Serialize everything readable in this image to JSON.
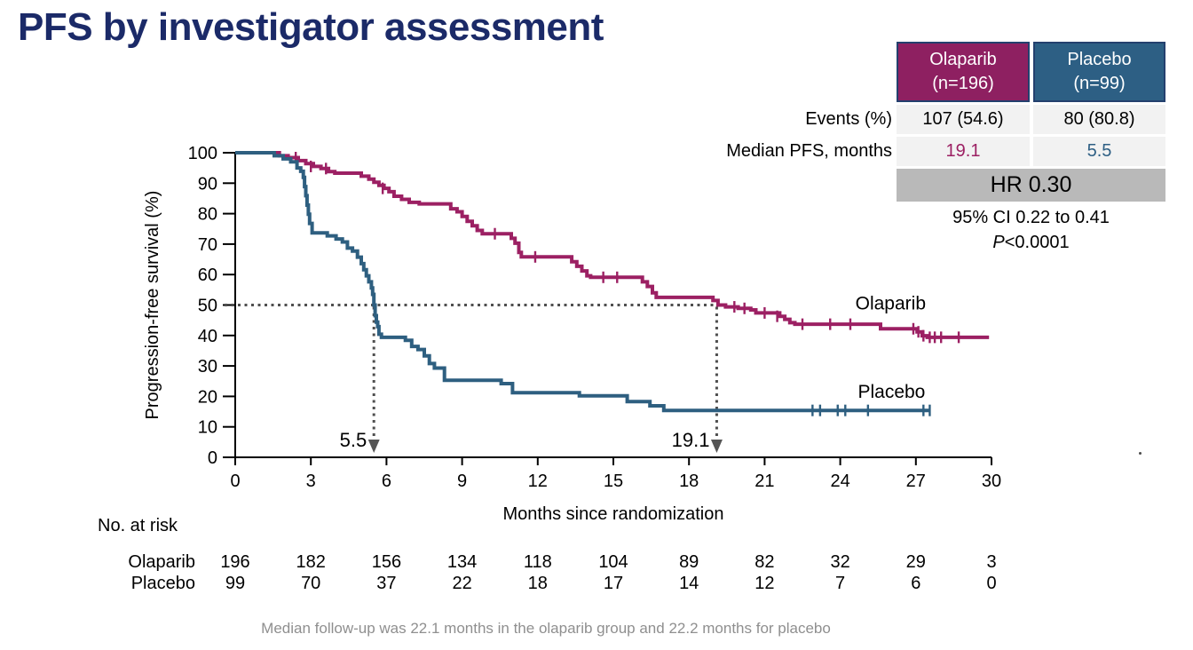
{
  "title": "PFS by investigator assessment",
  "colors": {
    "title_navy": "#1b2a68",
    "olaparib": "#9c2063",
    "placebo": "#2e5f80",
    "olaparib_header_bg": "#8e2061",
    "placebo_header_bg": "#2d5f84",
    "hr_band_bg": "#b9b9b9",
    "row_bg": "#f2f2f2",
    "dotted_gray": "#4f4f4f",
    "footnote_gray": "#8f8f8f"
  },
  "stats_table": {
    "columns": [
      {
        "name": "Olaparib",
        "n": "(n=196)",
        "bg": "#8e2061"
      },
      {
        "name": "Placebo",
        "n": "(n=99)",
        "bg": "#2d5f84"
      }
    ],
    "rows": [
      {
        "label": "Events (%)",
        "values": [
          "107 (54.6)",
          "80 (80.8)"
        ],
        "value_colors": [
          "#000000",
          "#000000"
        ]
      },
      {
        "label": "Median PFS, months",
        "values": [
          "19.1",
          "5.5"
        ],
        "value_colors": [
          "#9c2063",
          "#2e5f84"
        ]
      }
    ],
    "hr_label": "HR 0.30",
    "ci_label": "95% CI 0.22 to 0.41",
    "p_italic": "P",
    "p_rest": "<0.0001"
  },
  "chart_data": {
    "type": "line",
    "subtype": "kaplan_meier_step",
    "title": "",
    "xlabel": "Months since randomization",
    "ylabel": "Progression-free survival (%)",
    "xlim": [
      0,
      30
    ],
    "ylim": [
      0,
      100
    ],
    "xticks": [
      0,
      3,
      6,
      9,
      12,
      15,
      18,
      21,
      24,
      27,
      30
    ],
    "yticks": [
      0,
      10,
      20,
      30,
      40,
      50,
      60,
      70,
      80,
      90,
      100
    ],
    "grid": false,
    "legend_position": "inline-labels",
    "reference_line": {
      "y": 50,
      "x_end": 19.1
    },
    "medians": [
      {
        "label": "19.1",
        "x": 19.1,
        "series": "Olaparib",
        "color": "#9c2063"
      },
      {
        "label": "5.5",
        "x": 5.5,
        "series": "Placebo",
        "color": "#35699f"
      }
    ],
    "series": [
      {
        "name": "Olaparib",
        "color": "#9c2063",
        "label_at": [
          24.6,
          48.6
        ],
        "steps": [
          [
            0,
            100
          ],
          [
            1.6,
            100
          ],
          [
            1.75,
            99
          ],
          [
            2.1,
            98.4
          ],
          [
            2.5,
            97.4
          ],
          [
            2.8,
            96.4
          ],
          [
            3.1,
            95.5
          ],
          [
            3.4,
            94.8
          ],
          [
            3.7,
            93.8
          ],
          [
            3.95,
            93.3
          ],
          [
            4.9,
            93.3
          ],
          [
            5.0,
            92.3
          ],
          [
            5.3,
            91.3
          ],
          [
            5.5,
            90.3
          ],
          [
            5.7,
            89.3
          ],
          [
            5.9,
            88.3
          ],
          [
            6.1,
            87.2
          ],
          [
            6.3,
            85.7
          ],
          [
            6.6,
            84.7
          ],
          [
            6.9,
            83.7
          ],
          [
            7.3,
            83.2
          ],
          [
            8.4,
            83.2
          ],
          [
            8.55,
            81.6
          ],
          [
            8.8,
            80.6
          ],
          [
            9.0,
            79.1
          ],
          [
            9.2,
            77.5
          ],
          [
            9.4,
            76.0
          ],
          [
            9.6,
            74.5
          ],
          [
            9.8,
            73.4
          ],
          [
            10.85,
            73.4
          ],
          [
            10.95,
            71.9
          ],
          [
            11.1,
            70.3
          ],
          [
            11.25,
            67.3
          ],
          [
            11.35,
            65.8
          ],
          [
            13.2,
            65.8
          ],
          [
            13.35,
            64.2
          ],
          [
            13.55,
            62.7
          ],
          [
            13.75,
            61.2
          ],
          [
            13.95,
            59.6
          ],
          [
            14.1,
            59.1
          ],
          [
            16.0,
            59.1
          ],
          [
            16.15,
            57.6
          ],
          [
            16.35,
            56.1
          ],
          [
            16.55,
            54.0
          ],
          [
            16.7,
            52.5
          ],
          [
            18.85,
            52.5
          ],
          [
            18.95,
            51.5
          ],
          [
            19.15,
            50.0
          ],
          [
            19.45,
            49.4
          ],
          [
            19.95,
            48.9
          ],
          [
            20.45,
            48.4
          ],
          [
            20.65,
            47.4
          ],
          [
            21.45,
            47.4
          ],
          [
            21.6,
            46.3
          ],
          [
            21.8,
            45.3
          ],
          [
            22.0,
            44.2
          ],
          [
            22.2,
            43.7
          ],
          [
            25.5,
            43.7
          ],
          [
            25.6,
            42.2
          ],
          [
            26.95,
            42.2
          ],
          [
            27.05,
            41.2
          ],
          [
            27.25,
            39.9
          ],
          [
            27.45,
            39.4
          ],
          [
            29.9,
            39.4
          ]
        ],
        "censors": [
          [
            2.4,
            98.4
          ],
          [
            3.0,
            95.5
          ],
          [
            3.6,
            94.8
          ],
          [
            5.85,
            88.3
          ],
          [
            10.3,
            73.4
          ],
          [
            11.9,
            65.8
          ],
          [
            14.6,
            59.1
          ],
          [
            15.15,
            59.1
          ],
          [
            19.8,
            49.4
          ],
          [
            20.2,
            48.9
          ],
          [
            21.0,
            47.4
          ],
          [
            21.5,
            46.3
          ],
          [
            22.5,
            43.7
          ],
          [
            23.6,
            43.7
          ],
          [
            24.4,
            43.7
          ],
          [
            26.9,
            42.2
          ],
          [
            27.1,
            41.2
          ],
          [
            27.3,
            39.9
          ],
          [
            27.55,
            39.4
          ],
          [
            27.75,
            39.4
          ],
          [
            28.0,
            39.4
          ],
          [
            28.7,
            39.4
          ]
        ]
      },
      {
        "name": "Placebo",
        "color": "#2e5f80",
        "label_at": [
          24.7,
          19.5
        ],
        "steps": [
          [
            0,
            100
          ],
          [
            1.4,
            100
          ],
          [
            1.55,
            99
          ],
          [
            1.9,
            98
          ],
          [
            2.2,
            97
          ],
          [
            2.45,
            95
          ],
          [
            2.6,
            93.9
          ],
          [
            2.7,
            91.9
          ],
          [
            2.75,
            88.9
          ],
          [
            2.8,
            85.9
          ],
          [
            2.85,
            82.8
          ],
          [
            2.9,
            79.8
          ],
          [
            2.95,
            76.8
          ],
          [
            3.05,
            73.7
          ],
          [
            3.55,
            73.7
          ],
          [
            3.65,
            72.7
          ],
          [
            4.0,
            71.7
          ],
          [
            4.25,
            70.7
          ],
          [
            4.45,
            68.7
          ],
          [
            4.65,
            67.7
          ],
          [
            4.85,
            65.7
          ],
          [
            5.0,
            63.6
          ],
          [
            5.1,
            61.6
          ],
          [
            5.2,
            59.6
          ],
          [
            5.3,
            57.6
          ],
          [
            5.4,
            55.6
          ],
          [
            5.45,
            53.5
          ],
          [
            5.5,
            50.0
          ],
          [
            5.55,
            46.5
          ],
          [
            5.6,
            44.4
          ],
          [
            5.65,
            42.9
          ],
          [
            5.7,
            40.4
          ],
          [
            5.8,
            39.4
          ],
          [
            6.6,
            39.4
          ],
          [
            6.75,
            38.4
          ],
          [
            7.0,
            36.4
          ],
          [
            7.25,
            35.4
          ],
          [
            7.5,
            33.3
          ],
          [
            7.7,
            30.8
          ],
          [
            7.9,
            29.3
          ],
          [
            8.3,
            25.3
          ],
          [
            10.4,
            25.3
          ],
          [
            10.55,
            24.2
          ],
          [
            11.0,
            21.2
          ],
          [
            13.5,
            21.2
          ],
          [
            13.65,
            20.2
          ],
          [
            15.4,
            20.2
          ],
          [
            15.55,
            18.3
          ],
          [
            16.3,
            18.3
          ],
          [
            16.45,
            16.9
          ],
          [
            17.0,
            15.4
          ],
          [
            27.55,
            15.4
          ]
        ],
        "censors": [
          [
            22.9,
            15.4
          ],
          [
            23.2,
            15.4
          ],
          [
            23.9,
            15.4
          ],
          [
            24.2,
            15.4
          ],
          [
            25.1,
            15.4
          ],
          [
            27.3,
            15.4
          ],
          [
            27.55,
            15.4
          ]
        ]
      }
    ]
  },
  "risk_table": {
    "heading": "No. at risk",
    "months": [
      0,
      3,
      6,
      9,
      12,
      15,
      18,
      21,
      24,
      27,
      30
    ],
    "rows": [
      {
        "label": "Olaparib",
        "counts": [
          196,
          182,
          156,
          134,
          118,
          104,
          89,
          82,
          32,
          29,
          3
        ]
      },
      {
        "label": "Placebo",
        "counts": [
          99,
          70,
          37,
          22,
          18,
          17,
          14,
          12,
          7,
          6,
          0
        ]
      }
    ]
  },
  "footnote": "Median follow-up was 22.1 months in the olaparib group and 22.2 months for placebo"
}
